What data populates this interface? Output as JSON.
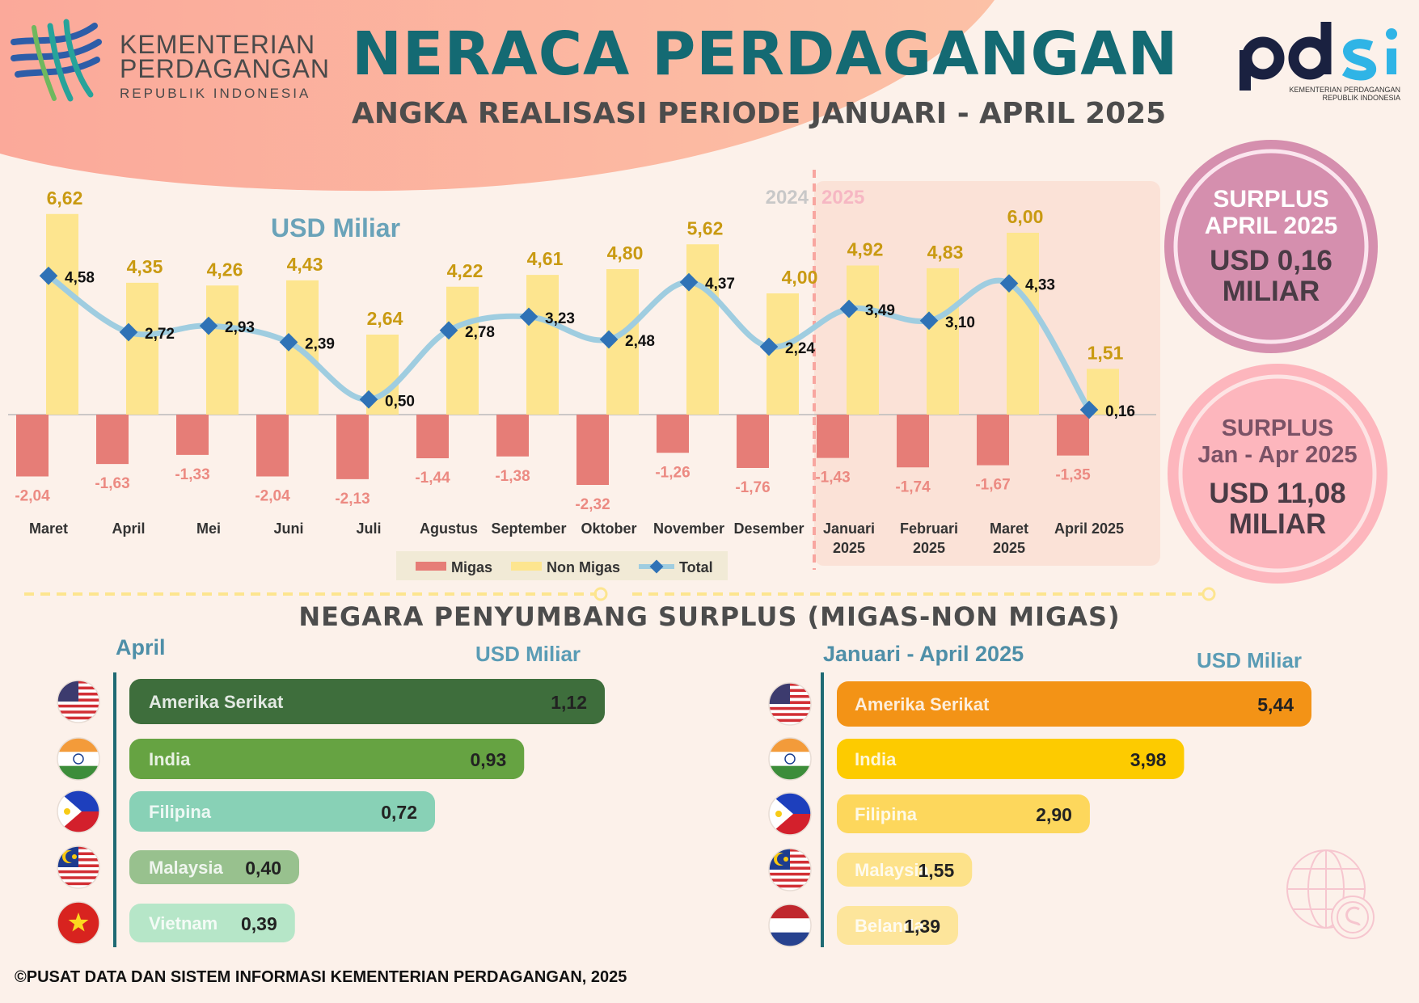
{
  "header": {
    "org_name_line1": "KEMENTERIAN",
    "org_name_line2": "PERDAGANGAN",
    "org_name_line3": "REPUBLIK INDONESIA",
    "title": "NERACA PERDAGANGAN",
    "subtitle": "ANGKA REALISASI PERIODE JANUARI - APRIL 2025",
    "pdsi_caption_line1": "KEMENTERIAN PERDAGANGAN",
    "pdsi_caption_line2": "REPUBLIK INDONESIA"
  },
  "summary": {
    "april_title_line1": "SURPLUS",
    "april_title_line2": "APRIL 2025",
    "april_value_line1": "USD 0,16",
    "april_value_line2": "MILIAR",
    "ytd_title_line1": "SURPLUS",
    "ytd_title_line2": "Jan - Apr 2025",
    "ytd_value_line1": "USD 11,08",
    "ytd_value_line2": "MILIAR"
  },
  "colors": {
    "migas": "#e67d77",
    "non_migas": "#fde58f",
    "total": "#9fcde0",
    "total_marker": "#2f72b6",
    "title_teal": "#146a73"
  },
  "chart_data": [
    {
      "type": "bar",
      "unit_label": "USD Miliar",
      "period_labels": [
        "2024",
        "2025"
      ],
      "categories": [
        [
          "Maret"
        ],
        [
          "April"
        ],
        [
          "Mei"
        ],
        [
          "Juni"
        ],
        [
          "Juli"
        ],
        [
          "Agustus"
        ],
        [
          "September"
        ],
        [
          "Oktober"
        ],
        [
          "November"
        ],
        [
          "Desember"
        ],
        [
          "Januari",
          "2025"
        ],
        [
          "Februari",
          "2025"
        ],
        [
          "Maret",
          "2025"
        ],
        [
          "April 2025"
        ]
      ],
      "series": [
        {
          "name": "Migas",
          "values": [
            -2.04,
            -1.63,
            -1.33,
            -2.04,
            -2.13,
            -1.44,
            -1.38,
            -2.32,
            -1.26,
            -1.76,
            -1.43,
            -1.74,
            -1.67,
            -1.35
          ],
          "labels": [
            "-2,04",
            "-1,63",
            "-1,33",
            "-2,04",
            "-2,13",
            "-1,44",
            "-1,38",
            "-2,32",
            "-1,26",
            "-1,76",
            "-1,43",
            "-1,74",
            "-1,67",
            "-1,35"
          ]
        },
        {
          "name": "Non Migas",
          "values": [
            6.62,
            4.35,
            4.26,
            4.43,
            2.64,
            4.22,
            4.61,
            4.8,
            5.62,
            4.0,
            4.92,
            4.83,
            6.0,
            1.51
          ],
          "labels": [
            "6,62",
            "4,35",
            "4,26",
            "4,43",
            "2,64",
            "4,22",
            "4,61",
            "4,80",
            "5,62",
            "4,00",
            "4,92",
            "4,83",
            "6,00",
            "1,51"
          ]
        },
        {
          "name": "Total",
          "type": "line",
          "values": [
            4.58,
            2.72,
            2.93,
            2.39,
            0.5,
            2.78,
            3.23,
            2.48,
            4.37,
            2.24,
            3.49,
            3.1,
            4.33,
            0.16
          ],
          "labels": [
            "4,58",
            "2,72",
            "2,93",
            "2,39",
            "0,50",
            "2,78",
            "3,23",
            "2,48",
            "4,37",
            "2,24",
            "3,49",
            "3,10",
            "4,33",
            "0,16"
          ]
        }
      ],
      "ylim": [
        -2.5,
        7.0
      ],
      "legend_position": "bottom-center"
    },
    {
      "type": "bar",
      "orientation": "horizontal",
      "title": "April",
      "unit_label": "USD Miliar",
      "categories": [
        "Amerika Serikat",
        "India",
        "Filipina",
        "Malaysia",
        "Vietnam"
      ],
      "values": [
        1.12,
        0.93,
        0.72,
        0.4,
        0.39
      ],
      "labels": [
        "1,12",
        "0,93",
        "0,72",
        "0,40",
        "0,39"
      ],
      "colors": [
        "#3e6e3c",
        "#66a342",
        "#88d1b6",
        "#98c18e",
        "#b6e6c8"
      ],
      "flags": [
        "us-flag",
        "india-flag",
        "philippines-flag",
        "malaysia-flag",
        "vietnam-flag"
      ]
    },
    {
      "type": "bar",
      "orientation": "horizontal",
      "title": "Januari - April 2025",
      "unit_label": "USD Miliar",
      "categories": [
        "Amerika Serikat",
        "India",
        "Filipina",
        "Malaysia",
        "Belanda"
      ],
      "values": [
        5.44,
        3.98,
        2.9,
        1.55,
        1.39
      ],
      "labels": [
        "5,44",
        "3,98",
        "2,90",
        "1,55",
        "1,39"
      ],
      "colors": [
        "#f39316",
        "#fdcb00",
        "#fdd75c",
        "#fde28a",
        "#fde59b"
      ],
      "flags": [
        "us-flag",
        "india-flag",
        "philippines-flag",
        "malaysia-flag",
        "netherlands-flag"
      ]
    }
  ],
  "section_title": "NEGARA PENYUMBANG SURPLUS (MIGAS-NON MIGAS)",
  "footer": "©PUSAT DATA DAN SISTEM INFORMASI KEMENTERIAN PERDAGANGAN, 2025"
}
